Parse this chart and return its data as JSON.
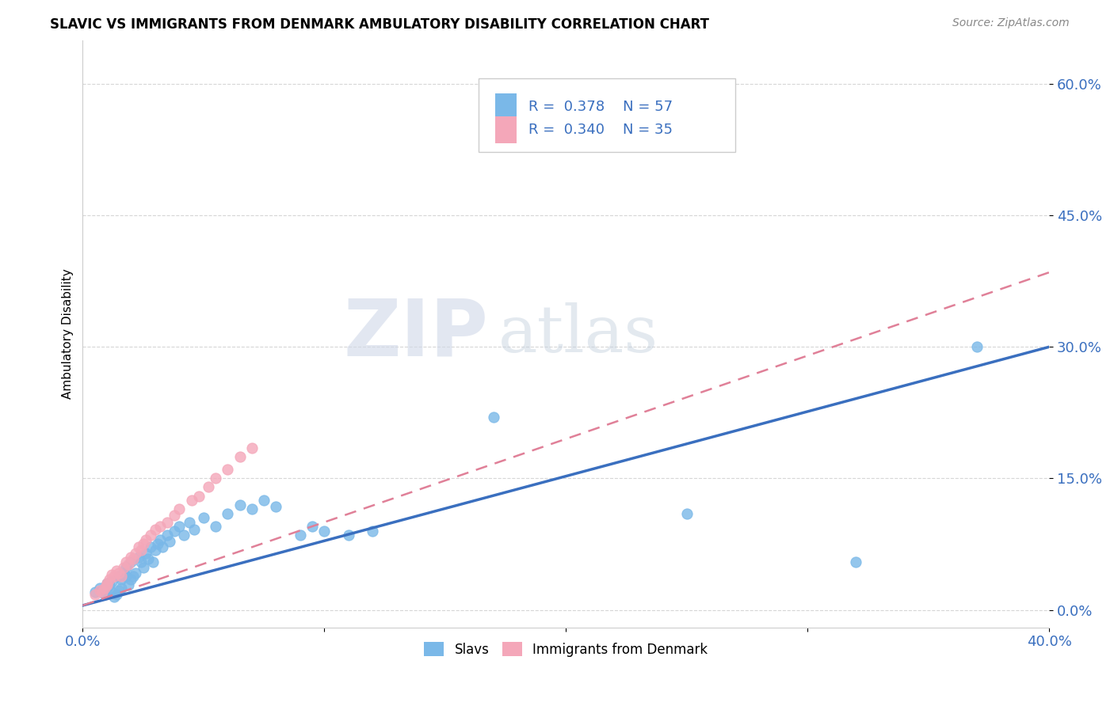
{
  "title": "SLAVIC VS IMMIGRANTS FROM DENMARK AMBULATORY DISABILITY CORRELATION CHART",
  "source": "Source: ZipAtlas.com",
  "ylabel": "Ambulatory Disability",
  "xlim": [
    0.0,
    0.4
  ],
  "ylim": [
    -0.02,
    0.65
  ],
  "ytick_labels": [
    "0.0%",
    "15.0%",
    "30.0%",
    "45.0%",
    "60.0%"
  ],
  "ytick_values": [
    0.0,
    0.15,
    0.3,
    0.45,
    0.6
  ],
  "xtick_values": [
    0.0,
    0.1,
    0.2,
    0.3,
    0.4
  ],
  "xtick_labels": [
    "0.0%",
    "",
    "",
    "",
    "40.0%"
  ],
  "legend_label1": "Slavs",
  "legend_label2": "Immigrants from Denmark",
  "r1": "0.378",
  "n1": "57",
  "r2": "0.340",
  "n2": "35",
  "color_slavs": "#7ab8e8",
  "color_denmark": "#f4a7b9",
  "line_color_slavs": "#3a6fbf",
  "line_color_denmark": "#e08098",
  "background_color": "#ffffff",
  "grid_color": "#cccccc",
  "watermark_zip": "ZIP",
  "watermark_atlas": "atlas",
  "slavs_x": [
    0.005,
    0.007,
    0.008,
    0.009,
    0.01,
    0.01,
    0.011,
    0.012,
    0.012,
    0.013,
    0.014,
    0.015,
    0.015,
    0.016,
    0.016,
    0.017,
    0.018,
    0.018,
    0.019,
    0.02,
    0.02,
    0.021,
    0.022,
    0.023,
    0.024,
    0.025,
    0.026,
    0.027,
    0.028,
    0.029,
    0.03,
    0.031,
    0.032,
    0.033,
    0.035,
    0.036,
    0.038,
    0.04,
    0.042,
    0.044,
    0.046,
    0.05,
    0.055,
    0.06,
    0.065,
    0.07,
    0.075,
    0.08,
    0.09,
    0.095,
    0.1,
    0.11,
    0.12,
    0.17,
    0.25,
    0.32,
    0.37
  ],
  "slavs_y": [
    0.02,
    0.025,
    0.022,
    0.018,
    0.025,
    0.03,
    0.028,
    0.032,
    0.02,
    0.015,
    0.018,
    0.022,
    0.038,
    0.025,
    0.035,
    0.042,
    0.048,
    0.038,
    0.028,
    0.055,
    0.035,
    0.038,
    0.042,
    0.06,
    0.055,
    0.048,
    0.065,
    0.058,
    0.072,
    0.055,
    0.068,
    0.075,
    0.08,
    0.072,
    0.085,
    0.078,
    0.09,
    0.095,
    0.085,
    0.1,
    0.092,
    0.105,
    0.095,
    0.11,
    0.12,
    0.115,
    0.125,
    0.118,
    0.085,
    0.095,
    0.09,
    0.085,
    0.09,
    0.22,
    0.11,
    0.055,
    0.3
  ],
  "denmark_x": [
    0.005,
    0.007,
    0.008,
    0.009,
    0.01,
    0.01,
    0.011,
    0.012,
    0.013,
    0.014,
    0.015,
    0.016,
    0.017,
    0.018,
    0.019,
    0.02,
    0.021,
    0.022,
    0.023,
    0.024,
    0.025,
    0.026,
    0.028,
    0.03,
    0.032,
    0.035,
    0.038,
    0.04,
    0.045,
    0.048,
    0.052,
    0.055,
    0.06,
    0.065,
    0.07
  ],
  "denmark_y": [
    0.018,
    0.022,
    0.02,
    0.025,
    0.03,
    0.028,
    0.035,
    0.04,
    0.038,
    0.045,
    0.042,
    0.038,
    0.048,
    0.055,
    0.052,
    0.06,
    0.058,
    0.065,
    0.072,
    0.068,
    0.075,
    0.08,
    0.085,
    0.092,
    0.095,
    0.1,
    0.108,
    0.115,
    0.125,
    0.13,
    0.14,
    0.15,
    0.16,
    0.175,
    0.185
  ]
}
